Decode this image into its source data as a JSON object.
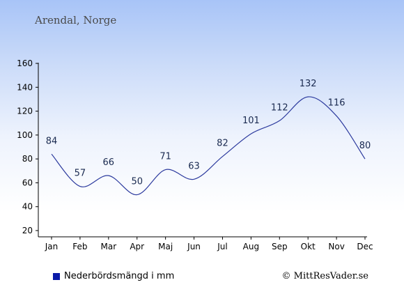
{
  "header": {
    "place": "Arendal, Norge"
  },
  "legend": {
    "label": "Nederbördsmängd i mm"
  },
  "credit": {
    "text": "© MittResVader.se"
  },
  "colors": {
    "line": "#2c3a9e",
    "legend_swatch": "#0a1aa8",
    "label": "#1a2a50"
  },
  "chart_data": {
    "type": "line",
    "categories": [
      "Jan",
      "Feb",
      "Mar",
      "Apr",
      "Maj",
      "Jun",
      "Jul",
      "Aug",
      "Sep",
      "Okt",
      "Nov",
      "Dec"
    ],
    "series": [
      {
        "name": "Nederbördsmängd i mm",
        "values": [
          84,
          57,
          66,
          50,
          71,
          63,
          82,
          101,
          112,
          132,
          116,
          80
        ]
      }
    ],
    "yticks": [
      20,
      40,
      60,
      80,
      100,
      120,
      140,
      160
    ],
    "ylim": [
      20,
      160
    ],
    "grid": false,
    "legend_position": "bottom-left"
  }
}
